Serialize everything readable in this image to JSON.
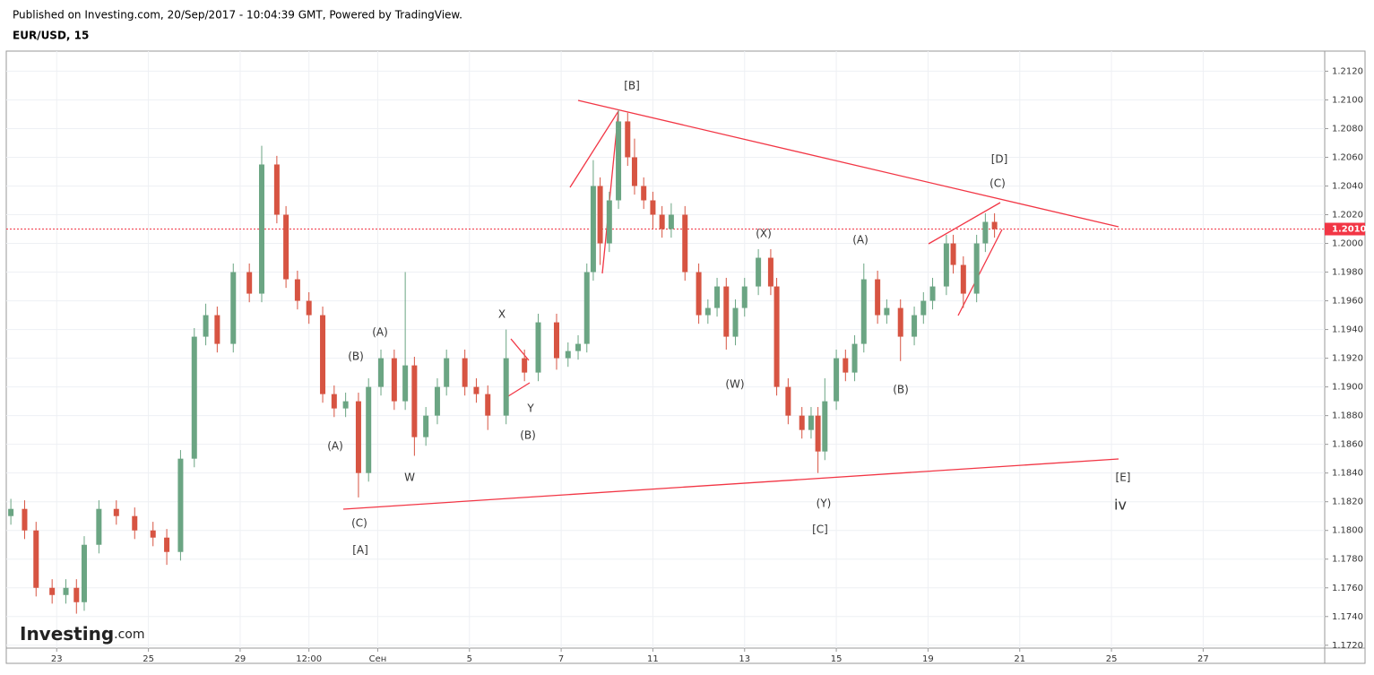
{
  "header": {
    "published": "Published on Investing.com, 20/Sep/2017 - 10:04:39 GMT, Powered by TradingView.",
    "symbol": "EUR/USD, 15"
  },
  "logo": {
    "brand": "Investing",
    "suffix": ".com"
  },
  "chart_data": {
    "type": "candlestick",
    "up_color": "#6ba583",
    "down_color": "#d75442",
    "x": [
      -1.0,
      -0.7,
      -0.45,
      -0.1,
      0.2,
      0.43,
      0.6,
      0.92,
      1.3,
      1.7,
      2.1,
      2.4,
      2.7,
      3.0,
      3.25,
      3.5,
      3.85,
      4.2,
      4.47,
      4.8,
      5.0,
      5.25,
      5.5,
      5.8,
      6.05,
      6.3,
      6.58,
      6.8,
      7.07,
      7.36,
      7.6,
      7.8,
      8.05,
      8.3,
      8.5,
      8.9,
      9.15,
      9.4,
      9.8,
      10.2,
      10.5,
      10.9,
      11.15,
      11.37,
      11.56,
      11.7,
      11.85,
      12.05,
      12.25,
      12.45,
      12.6,
      12.8,
      13.0,
      13.2,
      13.4,
      13.7,
      14.0,
      14.2,
      14.4,
      14.6,
      14.8,
      15.0,
      15.3,
      15.57,
      15.7,
      15.95,
      16.25,
      16.45,
      16.6,
      16.75,
      17.0,
      17.2,
      17.4,
      17.6,
      17.9,
      18.1,
      18.4,
      18.7,
      18.9,
      19.1,
      19.4,
      19.55,
      19.77,
      20.06,
      20.25,
      20.45
    ],
    "open": [
      1.181,
      1.1815,
      1.18,
      1.176,
      1.1755,
      1.176,
      1.175,
      1.179,
      1.1815,
      1.181,
      1.18,
      1.1795,
      1.1785,
      1.185,
      1.1935,
      1.195,
      1.193,
      1.198,
      1.1965,
      1.2055,
      1.202,
      1.1975,
      1.196,
      1.195,
      1.1895,
      1.1885,
      1.189,
      1.184,
      1.19,
      1.192,
      1.189,
      1.1915,
      1.1865,
      1.188,
      1.19,
      1.192,
      1.19,
      1.1895,
      1.188,
      1.192,
      1.191,
      1.1945,
      1.192,
      1.1925,
      1.193,
      1.198,
      1.204,
      1.2,
      1.203,
      1.2085,
      1.206,
      1.204,
      1.203,
      1.202,
      1.201,
      1.202,
      1.198,
      1.195,
      1.1955,
      1.197,
      1.1935,
      1.1955,
      1.197,
      1.199,
      1.197,
      1.19,
      1.188,
      1.187,
      1.188,
      1.1855,
      1.189,
      1.192,
      1.191,
      1.193,
      1.1975,
      1.195,
      1.1955,
      1.1935,
      1.195,
      1.196,
      1.197,
      1.2,
      1.1985,
      1.1965,
      1.2,
      1.2015
    ],
    "high": [
      1.1822,
      1.1821,
      1.1806,
      1.1766,
      1.1766,
      1.1766,
      1.1796,
      1.1821,
      1.1821,
      1.1816,
      1.1806,
      1.1801,
      1.1856,
      1.1941,
      1.1958,
      1.1956,
      1.1986,
      1.1986,
      1.2068,
      1.2061,
      1.2026,
      1.1981,
      1.1966,
      1.1956,
      1.1901,
      1.1896,
      1.1896,
      1.1906,
      1.1926,
      1.1926,
      1.198,
      1.1921,
      1.1886,
      1.1906,
      1.1926,
      1.1926,
      1.1906,
      1.1901,
      1.194,
      1.1926,
      1.1951,
      1.1951,
      1.1931,
      1.1936,
      1.1986,
      1.2058,
      1.2046,
      1.2036,
      1.2093,
      1.2091,
      1.2073,
      1.2046,
      1.2036,
      1.2026,
      1.2028,
      1.2026,
      1.1986,
      1.1961,
      1.1976,
      1.1976,
      1.1961,
      1.1976,
      1.1996,
      1.1996,
      1.1976,
      1.1906,
      1.1886,
      1.1886,
      1.1886,
      1.1906,
      1.1926,
      1.1926,
      1.1936,
      1.1986,
      1.1981,
      1.1961,
      1.1961,
      1.1956,
      1.1966,
      1.1976,
      1.2006,
      1.2006,
      1.1991,
      1.2006,
      1.2021,
      1.2021
    ],
    "low": [
      1.1804,
      1.1794,
      1.1754,
      1.1749,
      1.1749,
      1.1742,
      1.1744,
      1.1784,
      1.1804,
      1.1794,
      1.1789,
      1.1776,
      1.1779,
      1.1844,
      1.1929,
      1.1924,
      1.1924,
      1.1959,
      1.1959,
      1.2014,
      1.1969,
      1.1954,
      1.1944,
      1.1889,
      1.1879,
      1.1879,
      1.1823,
      1.1834,
      1.1894,
      1.1884,
      1.1884,
      1.1852,
      1.1859,
      1.1874,
      1.1894,
      1.1894,
      1.1889,
      1.187,
      1.1874,
      1.1904,
      1.1904,
      1.1912,
      1.1914,
      1.1919,
      1.1924,
      1.1974,
      1.1985,
      1.1994,
      1.2024,
      1.2054,
      1.2034,
      1.2024,
      1.201,
      1.2004,
      1.2004,
      1.1974,
      1.1944,
      1.1944,
      1.1949,
      1.1926,
      1.1929,
      1.1949,
      1.1964,
      1.1964,
      1.1894,
      1.1874,
      1.1864,
      1.1864,
      1.184,
      1.1849,
      1.1884,
      1.1904,
      1.1904,
      1.1924,
      1.1944,
      1.1944,
      1.1918,
      1.1929,
      1.1944,
      1.1954,
      1.1964,
      1.1979,
      1.1955,
      1.1959,
      1.1994,
      1.2004
    ],
    "close": [
      1.1815,
      1.18,
      1.176,
      1.1755,
      1.176,
      1.175,
      1.179,
      1.1815,
      1.181,
      1.18,
      1.1795,
      1.1785,
      1.185,
      1.1935,
      1.195,
      1.193,
      1.198,
      1.1965,
      1.2055,
      1.202,
      1.1975,
      1.196,
      1.195,
      1.1895,
      1.1885,
      1.189,
      1.184,
      1.19,
      1.192,
      1.189,
      1.1915,
      1.1865,
      1.188,
      1.19,
      1.192,
      1.19,
      1.1895,
      1.188,
      1.192,
      1.191,
      1.1945,
      1.192,
      1.1925,
      1.193,
      1.198,
      1.204,
      1.2,
      1.203,
      1.2085,
      1.206,
      1.204,
      1.203,
      1.202,
      1.201,
      1.202,
      1.198,
      1.195,
      1.1955,
      1.197,
      1.1935,
      1.1955,
      1.197,
      1.199,
      1.197,
      1.19,
      1.188,
      1.187,
      1.188,
      1.1855,
      1.189,
      1.192,
      1.191,
      1.193,
      1.1975,
      1.195,
      1.1955,
      1.1935,
      1.195,
      1.196,
      1.197,
      1.2,
      1.1985,
      1.1965,
      1.2,
      1.2015,
      1.201
    ],
    "xlim": [
      -1.1,
      27.65
    ],
    "xticks": [
      {
        "value": 0,
        "label": "23"
      },
      {
        "value": 2,
        "label": "25"
      },
      {
        "value": 4,
        "label": "29"
      },
      {
        "value": 5.5,
        "label": "12:00"
      },
      {
        "value": 7,
        "label": "Сен"
      },
      {
        "value": 9,
        "label": "5"
      },
      {
        "value": 11,
        "label": "7"
      },
      {
        "value": 13,
        "label": "11"
      },
      {
        "value": 15,
        "label": "13"
      },
      {
        "value": 17,
        "label": "15"
      },
      {
        "value": 19,
        "label": "19"
      },
      {
        "value": 21,
        "label": "21"
      },
      {
        "value": 23,
        "label": "25"
      },
      {
        "value": 25,
        "label": "27"
      }
    ],
    "ylim": [
      1.1718,
      1.2134
    ],
    "yticks": [
      {
        "value": 1.172,
        "label": "1.1720"
      },
      {
        "value": 1.174,
        "label": "1.1740"
      },
      {
        "value": 1.176,
        "label": "1.1760"
      },
      {
        "value": 1.178,
        "label": "1.1780"
      },
      {
        "value": 1.18,
        "label": "1.1800"
      },
      {
        "value": 1.182,
        "label": "1.1820"
      },
      {
        "value": 1.184,
        "label": "1.1840"
      },
      {
        "value": 1.186,
        "label": "1.1860"
      },
      {
        "value": 1.188,
        "label": "1.1880"
      },
      {
        "value": 1.19,
        "label": "1.1900"
      },
      {
        "value": 1.192,
        "label": "1.1920"
      },
      {
        "value": 1.194,
        "label": "1.1940"
      },
      {
        "value": 1.196,
        "label": "1.1960"
      },
      {
        "value": 1.198,
        "label": "1.1980"
      },
      {
        "value": 1.2,
        "label": "1.2000"
      },
      {
        "value": 1.202,
        "label": "1.2020"
      },
      {
        "value": 1.204,
        "label": "1.2040"
      },
      {
        "value": 1.206,
        "label": "1.2060"
      },
      {
        "value": 1.208,
        "label": "1.2080"
      },
      {
        "value": 1.21,
        "label": "1.2100"
      },
      {
        "value": 1.212,
        "label": "1.2120"
      }
    ],
    "grid": true,
    "last_price": {
      "value": 1.201,
      "label": "1.2010"
    },
    "line_color": "#f23645",
    "annotations": [
      "[B]",
      "[D]",
      "(C)",
      "(X)",
      "(A)",
      "X",
      "(A)",
      "(B)",
      "Y",
      "(W)",
      "(B)",
      "(A)",
      "(B)",
      "W",
      "[E]",
      "iv",
      "(Y)",
      "(C)",
      "[C]",
      "[A]"
    ]
  }
}
